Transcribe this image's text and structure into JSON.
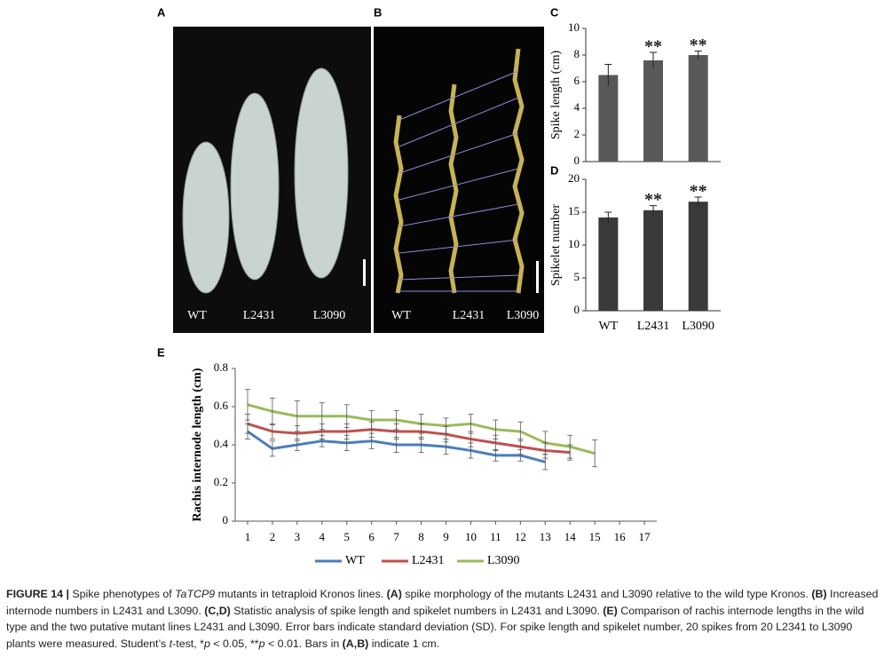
{
  "panels": [
    {
      "label": "A",
      "texts": [
        "WT",
        "L2431",
        "L3090"
      ]
    },
    {
      "label": "B",
      "texts": [
        "WT",
        "L2431",
        "L3090"
      ]
    }
  ],
  "chart_data": [
    {
      "type": "bar",
      "panel_label": "C",
      "y_label": "Spike length (cm)",
      "color": "#595959",
      "values": [
        6.5,
        7.6,
        8.0
      ],
      "errors": [
        0.8,
        0.6,
        0.3
      ],
      "annotations": [
        null,
        "**",
        "**"
      ],
      "ylim": [
        0,
        10
      ],
      "yticks": [
        0,
        2,
        4,
        6,
        8,
        10
      ]
    },
    {
      "type": "bar",
      "panel_label": "D",
      "y_label": "Spikelet number",
      "color": "#3a3a3a",
      "categories": [
        "WT",
        "L2431",
        "L3090"
      ],
      "values": [
        14.2,
        15.3,
        16.6
      ],
      "errors": [
        0.8,
        0.7,
        0.7
      ],
      "annotations": [
        null,
        "**",
        "**"
      ],
      "ylim": [
        0,
        20
      ],
      "yticks": [
        0,
        5,
        10,
        15,
        20
      ]
    },
    {
      "type": "line",
      "panel_label": "E",
      "y_label": "Rachis internode length (cm)",
      "x": [
        1,
        2,
        3,
        4,
        5,
        6,
        7,
        8,
        9,
        10,
        11,
        12,
        13,
        14,
        15
      ],
      "series": [
        {
          "name": "WT",
          "color": "#4a7ebb",
          "values": [
            0.47,
            0.38,
            0.4,
            0.42,
            0.41,
            0.42,
            0.4,
            0.4,
            0.39,
            0.37,
            0.345,
            0.345,
            0.31,
            null,
            null
          ],
          "errors": [
            0.04,
            0.04,
            0.03,
            0.03,
            0.04,
            0.04,
            0.04,
            0.04,
            0.04,
            0.04,
            0.03,
            0.03,
            0.04,
            null,
            null
          ]
        },
        {
          "name": "L2431",
          "color": "#c0504d",
          "values": [
            0.51,
            0.47,
            0.46,
            0.47,
            0.47,
            0.48,
            0.47,
            0.47,
            0.455,
            0.43,
            0.41,
            0.39,
            0.37,
            0.36,
            null
          ],
          "errors": [
            0.05,
            0.04,
            0.04,
            0.04,
            0.04,
            0.04,
            0.04,
            0.04,
            0.04,
            0.04,
            0.04,
            0.04,
            0.04,
            0.04,
            null
          ]
        },
        {
          "name": "L3090",
          "color": "#9bbb59",
          "values": [
            0.61,
            0.575,
            0.55,
            0.55,
            0.55,
            0.53,
            0.53,
            0.51,
            0.5,
            0.51,
            0.48,
            0.47,
            0.41,
            0.39,
            0.355
          ],
          "errors": [
            0.08,
            0.07,
            0.08,
            0.07,
            0.06,
            0.05,
            0.05,
            0.05,
            0.04,
            0.05,
            0.05,
            0.05,
            0.06,
            0.06,
            0.07
          ]
        }
      ],
      "xlim": [
        0.5,
        17.5
      ],
      "xticks": [
        1,
        2,
        3,
        4,
        5,
        6,
        7,
        8,
        9,
        10,
        11,
        12,
        13,
        14,
        15,
        16,
        17
      ],
      "ylim": [
        0,
        0.8
      ],
      "yticks": [
        0,
        0.2,
        0.4,
        0.6,
        0.8
      ]
    }
  ],
  "caption": {
    "parts": [
      "FIGURE 14 |",
      " Spike phenotypes of ",
      "TaTCP9",
      " mutants in tetraploid Kronos lines. ",
      "(A)",
      " spike morphology of the mutants L2431 and L3090 relative to the wild type Kronos. ",
      "(B)",
      " Increased internode numbers in L2431 and L3090. ",
      "(C,D)",
      " Statistic analysis of spike length and spikelet numbers in L2431 and L3090. ",
      "(E)",
      " Comparison of rachis internode lengths in the wild type and the two putative mutant lines L2431 and L3090. Error bars indicate standard deviation (SD). For spike length and spikelet number, 20 spikes from 20 L2341 to L3090 plants were measured. Student’s ",
      "t",
      "-test, *",
      "p",
      " < 0.05, **",
      "p",
      " < 0.01. Bars in ",
      "(A,B)",
      " indicate 1 cm."
    ]
  }
}
